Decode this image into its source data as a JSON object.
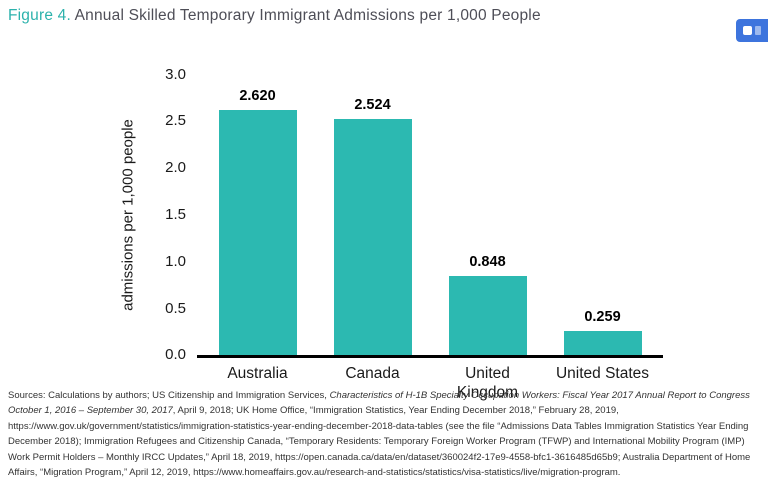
{
  "figure": {
    "label": "Figure 4.",
    "title": " Annual Skilled Temporary Immigrant Admissions per 1,000 People"
  },
  "overlay": {
    "badge_icon": "screenshot-extension-badge",
    "badge_color": "#3d74dd"
  },
  "chart_data": {
    "type": "bar",
    "title": "Figure 4. Annual Skilled Temporary Immigrant Admissions per 1,000 People",
    "categories": [
      "Australia",
      "Canada",
      "United Kingdom",
      "United States"
    ],
    "category_display": [
      "Australia",
      "Canada",
      "United\nKingdom",
      "United States"
    ],
    "values": [
      2.62,
      2.524,
      0.848,
      0.259
    ],
    "value_labels": [
      "2.620",
      "2.524",
      "0.848",
      "0.259"
    ],
    "xlabel": "",
    "ylabel": "admissions per 1,000 people",
    "ylim": [
      0,
      3.0
    ],
    "yticks": [
      "3.0",
      "2.5",
      "2.0",
      "1.5",
      "1.0",
      "0.5",
      "0.0"
    ],
    "bar_color": "#2cb9b1",
    "grid": false,
    "legend": "none"
  },
  "sources": {
    "segments": [
      {
        "italic": false,
        "text": "Sources: Calculations by authors; US Citizenship and Immigration Services, "
      },
      {
        "italic": true,
        "text": "Characteristics of H-1B Specialty Occupation Workers: Fiscal Year 2017 Annual Report to Congress October 1, 2016 – September 30, 2017"
      },
      {
        "italic": false,
        "text": ", April 9, 2018; UK Home Office, “Immigration Statistics, Year Ending December 2018,” February 28, 2019, https://www.gov.uk/government/statistics/immigration-statistics-year-ending-december-2018-data-tables (see the file “Admissions Data Tables Immigration Statistics Year Ending December 2018); Immigration Refugees and Citizenship Canada, “Temporary Residents: Temporary Foreign Worker Program (TFWP) and International Mobility Program (IMP) Work Permit Holders – Monthly IRCC Updates,” April 18, 2019, https://open.canada.ca/data/en/dataset/360024f2-17e9-4558-bfc1-3616485d65b9; Australia Department of Home Affairs, “Migration Program,” April 12, 2019, https://www.homeaffairs.gov.au/research-and-statistics/statistics/visa-statistics/live/migration-program."
      }
    ]
  }
}
